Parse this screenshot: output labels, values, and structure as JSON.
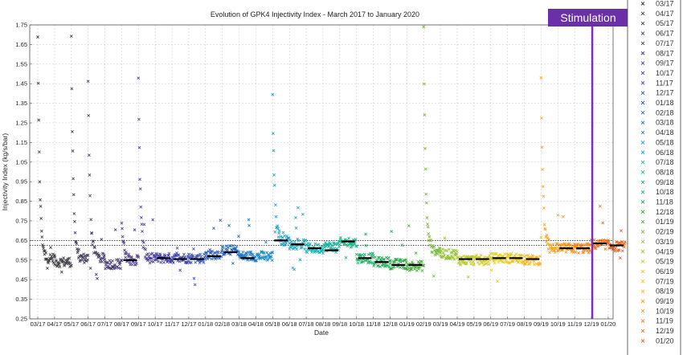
{
  "chart_data": {
    "type": "scatter",
    "title": "Evolution of GPK4 Injectivity Index - March 2017 to January 2020",
    "xlabel": "Date",
    "ylabel": "Injectivity Index (kg/s/bar)",
    "ylim": [
      0.25,
      1.75
    ],
    "yticks": [
      "0.25",
      "0.35",
      "0.45",
      "0.55",
      "0.65",
      "0.75",
      "0.85",
      "0.95",
      "1.05",
      "1.15",
      "1.25",
      "1.35",
      "1.45",
      "1.55",
      "1.65",
      "1.75"
    ],
    "grid": true,
    "legend_position": "right",
    "annotation": "Stimulation",
    "stimulation_month": "12/19",
    "threshold_lines": [
      0.625,
      0.65
    ],
    "series": [
      {
        "name": "03/17",
        "color": "#3a3a3a",
        "start": 1.7,
        "base": 0.56,
        "level": null
      },
      {
        "name": "04/17",
        "color": "#3a3a45",
        "start": null,
        "base": 0.54,
        "level": null
      },
      {
        "name": "05/17",
        "color": "#3e3a55",
        "start": 1.68,
        "base": 0.56,
        "level": null
      },
      {
        "name": "06/17",
        "color": "#433a66",
        "start": 1.48,
        "base": 0.56,
        "level": null
      },
      {
        "name": "07/17",
        "color": "#483a78",
        "start": null,
        "base": 0.53,
        "level": null
      },
      {
        "name": "08/17",
        "color": "#4c3a88",
        "start": 0.76,
        "base": 0.55,
        "level": 0.55
      },
      {
        "name": "09/17",
        "color": "#4b3c98",
        "start": 1.49,
        "base": 0.56,
        "level": null
      },
      {
        "name": "10/17",
        "color": "#473fa8",
        "start": null,
        "base": 0.56,
        "level": 0.56
      },
      {
        "name": "11/17",
        "color": "#3f45b2",
        "start": null,
        "base": 0.56,
        "level": 0.555
      },
      {
        "name": "12/17",
        "color": "#354eb8",
        "start": null,
        "base": 0.56,
        "level": 0.555
      },
      {
        "name": "01/18",
        "color": "#2b5bbd",
        "start": null,
        "base": 0.58,
        "level": 0.57
      },
      {
        "name": "02/18",
        "color": "#2068c2",
        "start": null,
        "base": 0.6,
        "level": 0.59
      },
      {
        "name": "03/18",
        "color": "#1a78c6",
        "start": null,
        "base": 0.57,
        "level": 0.56
      },
      {
        "name": "04/18",
        "color": "#1a8ac8",
        "start": null,
        "base": 0.57,
        "level": null
      },
      {
        "name": "05/18",
        "color": "#1a9bca",
        "start": 1.37,
        "base": 0.65,
        "level": 0.65
      },
      {
        "name": "06/18",
        "color": "#1aa8c4",
        "start": null,
        "base": 0.63,
        "level": 0.63
      },
      {
        "name": "07/18",
        "color": "#19b0b4",
        "start": null,
        "base": 0.61,
        "level": 0.61
      },
      {
        "name": "08/18",
        "color": "#19b39e",
        "start": null,
        "base": 0.62,
        "level": 0.6
      },
      {
        "name": "09/18",
        "color": "#1ab386",
        "start": null,
        "base": 0.64,
        "level": 0.645
      },
      {
        "name": "10/18",
        "color": "#1eb06e",
        "start": null,
        "base": 0.56,
        "level": 0.56
      },
      {
        "name": "11/18",
        "color": "#25ac58",
        "start": null,
        "base": 0.54,
        "level": 0.54
      },
      {
        "name": "12/18",
        "color": "#2fa846",
        "start": null,
        "base": 0.53,
        "level": 0.525
      },
      {
        "name": "01/19",
        "color": "#4aad3a",
        "start": null,
        "base": 0.52,
        "level": 0.525
      },
      {
        "name": "02/19",
        "color": "#72b834",
        "start": 1.72,
        "base": 0.6,
        "level": null
      },
      {
        "name": "03/19",
        "color": "#95c12e",
        "start": null,
        "base": 0.58,
        "level": null
      },
      {
        "name": "04/19",
        "color": "#b5c82a",
        "start": null,
        "base": 0.55,
        "level": 0.555
      },
      {
        "name": "05/19",
        "color": "#d0cb26",
        "start": null,
        "base": 0.55,
        "level": 0.555
      },
      {
        "name": "06/19",
        "color": "#e6cc22",
        "start": null,
        "base": 0.56,
        "level": 0.56
      },
      {
        "name": "07/19",
        "color": "#f2c41f",
        "start": null,
        "base": 0.56,
        "level": 0.56
      },
      {
        "name": "08/19",
        "color": "#f8b51d",
        "start": null,
        "base": 0.55,
        "level": 0.555
      },
      {
        "name": "09/19",
        "color": "#faa41c",
        "start": 1.49,
        "base": 0.61,
        "level": null
      },
      {
        "name": "10/19",
        "color": "#fa921b",
        "start": null,
        "base": 0.61,
        "level": 0.61
      },
      {
        "name": "11/19",
        "color": "#f6801b",
        "start": null,
        "base": 0.61,
        "level": 0.61
      },
      {
        "name": "12/19",
        "color": "#f0701c",
        "start": null,
        "base": 0.63,
        "level": 0.635
      },
      {
        "name": "01/20",
        "color": "#e85f1e",
        "start": null,
        "base": 0.62,
        "level": 0.625
      }
    ]
  },
  "xticks": [
    "03/17",
    "04/17",
    "05/17",
    "06/17",
    "07/17",
    "08/17",
    "09/17",
    "10/17",
    "11/17",
    "12/17",
    "01/18",
    "02/18",
    "03/18",
    "04/18",
    "05/18",
    "06/18",
    "07/18",
    "08/18",
    "09/18",
    "10/18",
    "11/18",
    "12/18",
    "01/19",
    "02/19",
    "03/19",
    "04/19",
    "05/19",
    "06/19",
    "07/19",
    "08/19",
    "09/19",
    "10/19",
    "11/19",
    "12/19",
    "01/20"
  ]
}
